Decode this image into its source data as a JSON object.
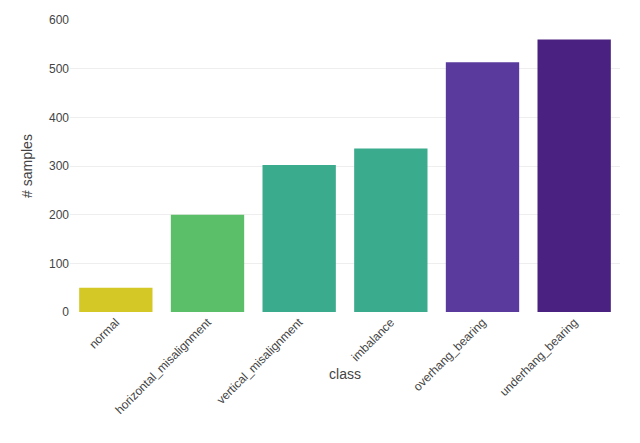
{
  "chart_data": {
    "type": "bar",
    "categories": [
      "normal",
      "horizontal_misalignment",
      "vertical_misalignment",
      "imbalance",
      "overhang_bearing",
      "underhang_bearing"
    ],
    "values": [
      50,
      200,
      302,
      336,
      513,
      560
    ],
    "colors": [
      "#d4c827",
      "#5bbf6a",
      "#3aab8c",
      "#3aab8c",
      "#5b3a9e",
      "#4a2080"
    ],
    "xlabel": "class",
    "ylabel": "# samples",
    "ylim": [
      0,
      600
    ],
    "yticks": [
      0,
      100,
      200,
      300,
      400,
      500,
      600
    ],
    "grid": true
  }
}
